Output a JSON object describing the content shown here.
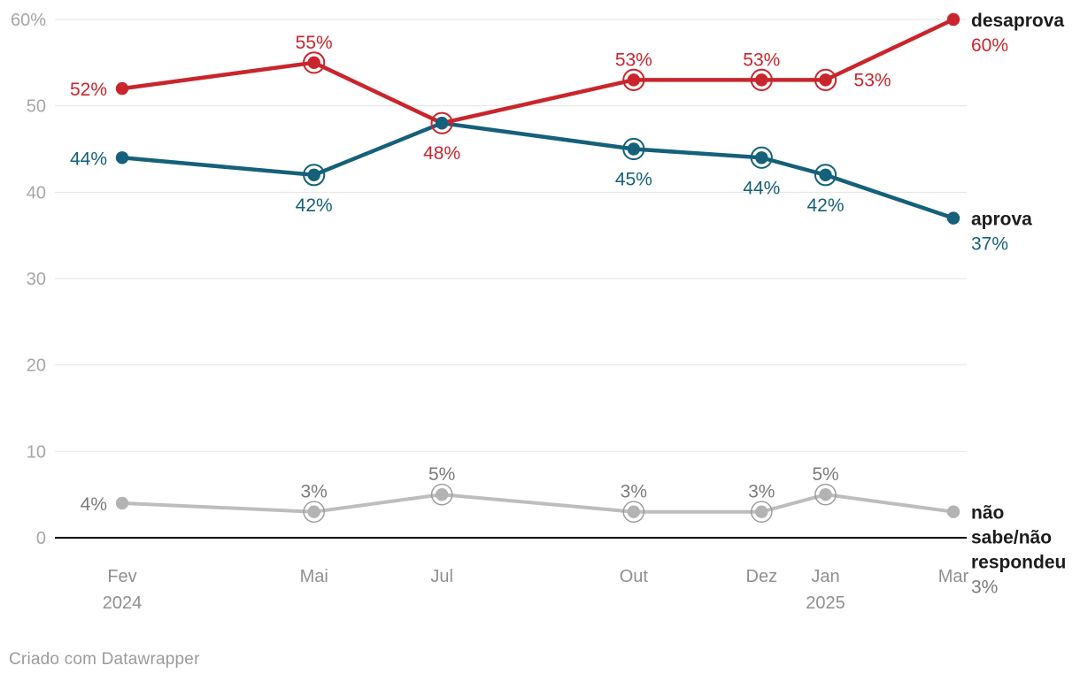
{
  "chart_data": {
    "type": "line",
    "title": "",
    "unit": "%",
    "x_axis": {
      "categories": [
        "Fev 2024",
        "Mai",
        "Jul",
        "Out",
        "Dez",
        "Jan 2025",
        "Mar"
      ],
      "tick_lines": [
        [
          "Fev",
          "2024"
        ],
        [
          "Mai"
        ],
        [
          "Jul"
        ],
        [
          "Out"
        ],
        [
          "Dez"
        ],
        [
          "Jan",
          "2025"
        ],
        [
          "Mar"
        ]
      ],
      "month_offsets": [
        0,
        3,
        5,
        8,
        10,
        11,
        13
      ]
    },
    "y_axis": {
      "min": 0,
      "max": 60,
      "grid": true,
      "ticks": [
        {
          "value": 60,
          "label": "60%"
        },
        {
          "value": 50,
          "label": "50"
        },
        {
          "value": 40,
          "label": "40"
        },
        {
          "value": 30,
          "label": "30"
        },
        {
          "value": 20,
          "label": "20"
        },
        {
          "value": 10,
          "label": "10"
        },
        {
          "value": 0,
          "label": "0"
        }
      ]
    },
    "legend_position": "right-of-line-ends",
    "series": [
      {
        "id": "desaprova",
        "name": "desaprova",
        "color": "#c9252c",
        "label_color": "#c9252c",
        "values": [
          52,
          55,
          48,
          53,
          53,
          53,
          60
        ],
        "point_labels": [
          "52%",
          "55%",
          "48%",
          "53%",
          "53%",
          "53%",
          ""
        ],
        "label_positions": [
          "left",
          "above",
          "below",
          "above",
          "above",
          "right",
          "none"
        ],
        "ringed_points": [
          false,
          true,
          true,
          true,
          true,
          true,
          false
        ],
        "legend": {
          "name_lines": [
            "desaprova"
          ],
          "value": "60%"
        }
      },
      {
        "id": "aprova",
        "name": "aprova",
        "color": "#15607a",
        "label_color": "#15607a",
        "values": [
          44,
          42,
          48,
          45,
          44,
          42,
          37
        ],
        "point_labels": [
          "44%",
          "42%",
          "",
          "45%",
          "44%",
          "42%",
          ""
        ],
        "label_positions": [
          "left",
          "below",
          "none",
          "below",
          "below",
          "below",
          "none"
        ],
        "ringed_points": [
          false,
          true,
          false,
          true,
          true,
          true,
          false
        ],
        "legend": {
          "name_lines": [
            "aprova"
          ],
          "value": "37%"
        }
      },
      {
        "id": "nao-sabe-nao-respondeu",
        "name": "não sabe/não respondeu",
        "color": "#bdbdbd",
        "dot_color": "#b3b3b3",
        "ring_color": "#999999",
        "label_color": "#7b7b7b",
        "values": [
          4,
          3,
          5,
          3,
          3,
          5,
          3
        ],
        "point_labels": [
          "4%",
          "3%",
          "5%",
          "3%",
          "3%",
          "5%",
          ""
        ],
        "label_positions": [
          "left",
          "above",
          "above",
          "above",
          "above",
          "above",
          "none"
        ],
        "ringed_points": [
          false,
          true,
          true,
          true,
          true,
          true,
          false
        ],
        "legend": {
          "name_lines": [
            "não",
            "sabe/não",
            "respondeu"
          ],
          "value": "3%"
        }
      }
    ],
    "colors": {
      "grid_line": "#e5e5e5",
      "zero_line": "#000000",
      "y_tick_label": "#a6a6a6",
      "x_tick_label": "#8f8f8f",
      "legend_name": "#1c1c1c",
      "background": "#ffffff"
    }
  },
  "footer": {
    "credit": "Criado com Datawrapper"
  }
}
